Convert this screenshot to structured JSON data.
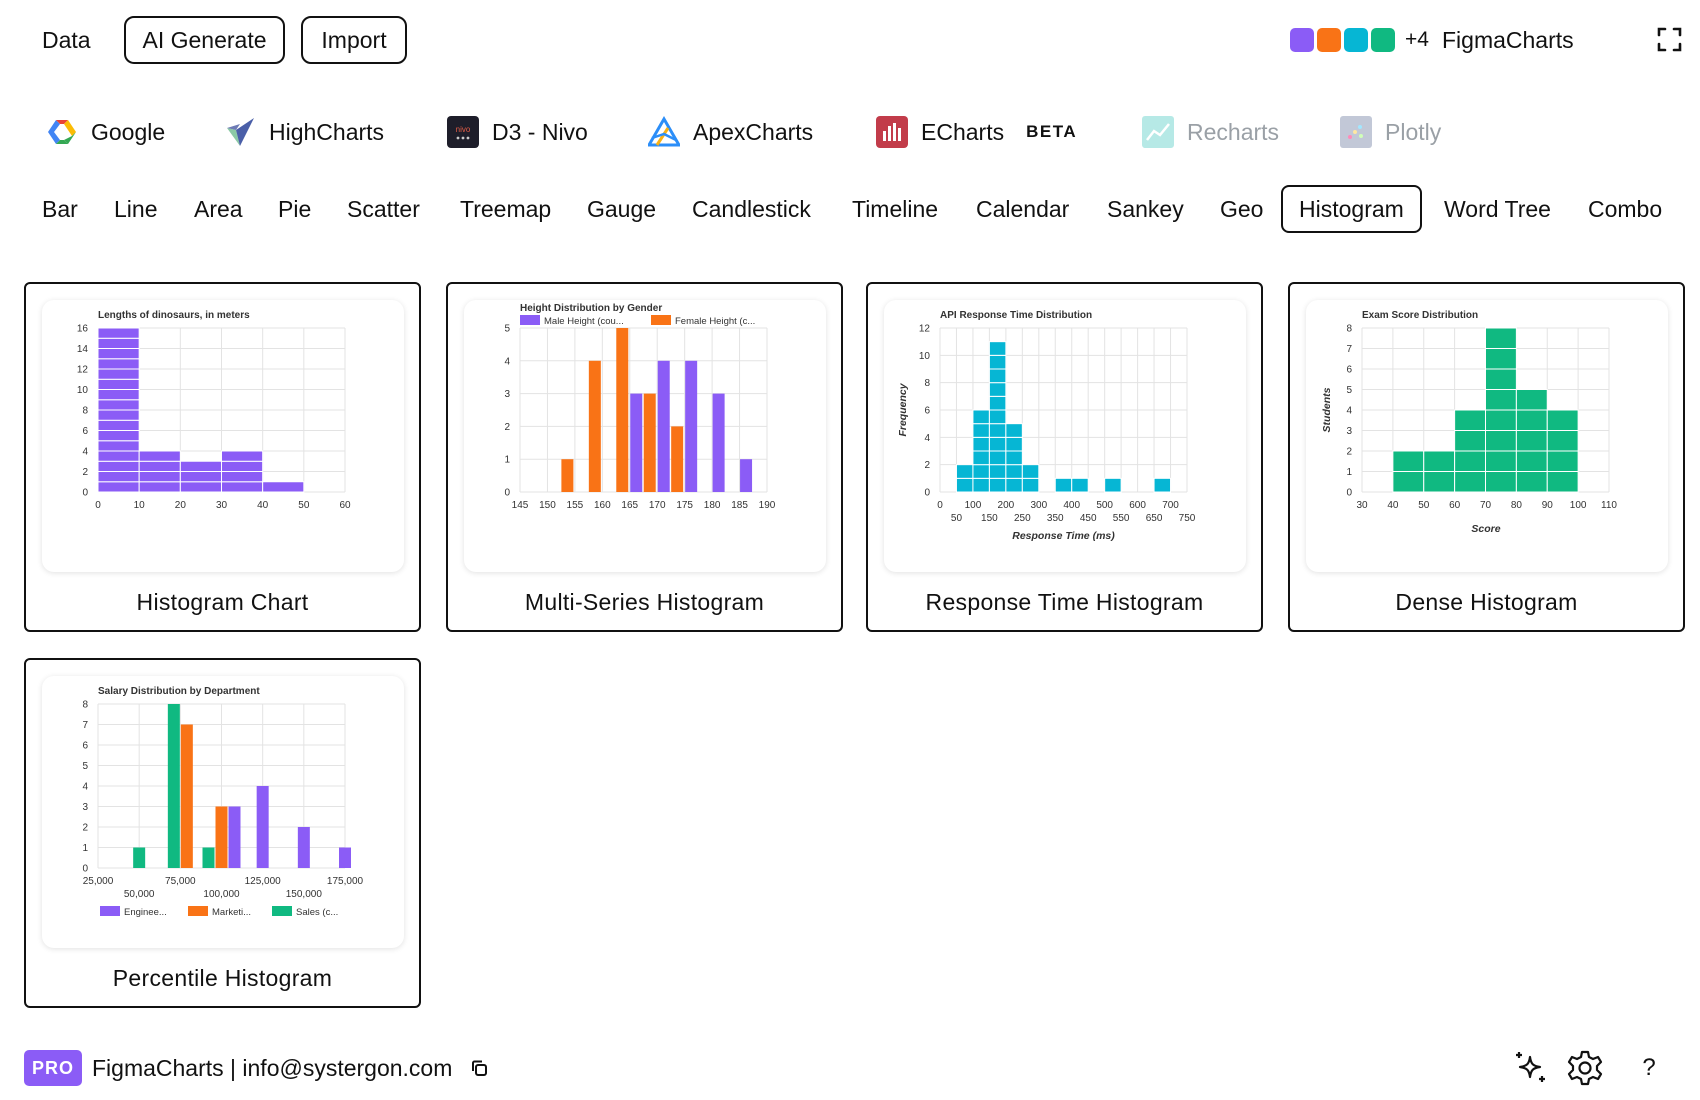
{
  "topbar": {
    "data_label": "Data",
    "ai_generate_label": "AI Generate",
    "import_label": "Import",
    "swatches": [
      "#8b5cf6",
      "#f97316",
      "#06b6d4",
      "#10b981"
    ],
    "extra_count": "+4",
    "app_name": "FigmaCharts",
    "expand_icon": "fullscreen-icon"
  },
  "libraries": [
    {
      "label": "Google",
      "icon": "google-charts-logo"
    },
    {
      "label": "HighCharts",
      "icon": "highcharts-logo"
    },
    {
      "label": "D3 - Nivo",
      "icon": "nivo-logo"
    },
    {
      "label": "ApexCharts",
      "icon": "apexcharts-logo"
    },
    {
      "label": "ECharts",
      "icon": "echarts-logo",
      "badge": "BETA"
    },
    {
      "label": "Recharts",
      "icon": "recharts-logo",
      "disabled": true
    },
    {
      "label": "Plotly",
      "icon": "plotly-logo",
      "disabled": true
    }
  ],
  "chart_types": [
    "Bar",
    "Line",
    "Area",
    "Pie",
    "Scatter",
    "Treemap",
    "Gauge",
    "Candlestick",
    "Timeline",
    "Calendar",
    "Sankey",
    "Geo",
    "Histogram",
    "Word Tree",
    "Combo"
  ],
  "active_chart_type": "Histogram",
  "cards": [
    {
      "label": "Histogram Chart"
    },
    {
      "label": "Multi-Series Histogram"
    },
    {
      "label": "Response Time Histogram"
    },
    {
      "label": "Dense Histogram"
    },
    {
      "label": "Percentile Histogram"
    }
  ],
  "chart_data": [
    {
      "type": "bar",
      "title": "Lengths of dinosaurs, in meters",
      "xlim": [
        0,
        60
      ],
      "ylim": [
        0,
        16
      ],
      "xticks": [
        "0",
        "10",
        "20",
        "30",
        "40",
        "50",
        "60"
      ],
      "yticks": [
        "0",
        "2",
        "4",
        "6",
        "8",
        "10",
        "12",
        "14",
        "16"
      ],
      "bins": [
        [
          0,
          10
        ],
        [
          10,
          20
        ],
        [
          20,
          30
        ],
        [
          30,
          40
        ],
        [
          40,
          50
        ]
      ],
      "values": [
        16,
        4,
        3,
        4,
        1
      ],
      "color": "#8b5cf6"
    },
    {
      "type": "bar",
      "title": "Height Distribution by Gender",
      "categories": [
        "145",
        "150",
        "155",
        "160",
        "165",
        "170",
        "175",
        "180",
        "185",
        "190"
      ],
      "ylim": [
        0,
        5
      ],
      "yticks": [
        "0",
        "1",
        "2",
        "3",
        "4",
        "5"
      ],
      "series": [
        {
          "name": "Male Height (cou...",
          "color": "#8b5cf6",
          "values": [
            0,
            0,
            0,
            0,
            3,
            4,
            4,
            3,
            1,
            0
          ]
        },
        {
          "name": "Female Height (c...",
          "color": "#f97316",
          "values": [
            0,
            0,
            1,
            4,
            5,
            3,
            2,
            0,
            0,
            0
          ]
        }
      ]
    },
    {
      "type": "bar",
      "title": "API Response Time Distribution",
      "xlabel": "Response Time (ms)",
      "ylabel": "Frequency",
      "xlim": [
        0,
        750
      ],
      "ylim": [
        0,
        12
      ],
      "xticks_row1": [
        "0",
        "100",
        "200",
        "300",
        "400",
        "500",
        "600",
        "700"
      ],
      "xticks_row2": [
        "50",
        "150",
        "250",
        "350",
        "450",
        "550",
        "650",
        "750"
      ],
      "yticks": [
        "0",
        "2",
        "4",
        "6",
        "8",
        "10",
        "12"
      ],
      "bins": [
        [
          50,
          100
        ],
        [
          100,
          150
        ],
        [
          150,
          200
        ],
        [
          200,
          250
        ],
        [
          250,
          300
        ],
        [
          350,
          400
        ],
        [
          400,
          450
        ],
        [
          500,
          550
        ],
        [
          650,
          700
        ]
      ],
      "values": [
        2,
        6,
        11,
        5,
        2,
        1,
        1,
        1,
        1
      ],
      "color": "#06b6d4"
    },
    {
      "type": "bar",
      "title": "Exam Score Distribution",
      "xlabel": "Score",
      "ylabel": "Students",
      "xlim": [
        30,
        110
      ],
      "ylim": [
        0,
        8
      ],
      "xticks": [
        "30",
        "40",
        "50",
        "60",
        "70",
        "80",
        "90",
        "100",
        "110"
      ],
      "yticks": [
        "0",
        "1",
        "2",
        "3",
        "4",
        "5",
        "6",
        "7",
        "8"
      ],
      "bins": [
        [
          40,
          50
        ],
        [
          50,
          60
        ],
        [
          60,
          70
        ],
        [
          70,
          80
        ],
        [
          80,
          90
        ],
        [
          90,
          100
        ]
      ],
      "values": [
        2,
        2,
        4,
        8,
        5,
        4
      ],
      "color": "#10b981"
    },
    {
      "type": "bar",
      "title": "Salary Distribution by Department",
      "categories": [
        "25,000",
        "50,000",
        "75,000",
        "100,000",
        "125,000",
        "150,000",
        "175,000"
      ],
      "ylim": [
        0,
        8
      ],
      "yticks": [
        "0",
        "1",
        "2",
        "3",
        "4",
        "5",
        "6",
        "7",
        "8"
      ],
      "series": [
        {
          "name": "Enginee...",
          "color": "#8b5cf6",
          "values": [
            0,
            0,
            0,
            3,
            4,
            2,
            1
          ]
        },
        {
          "name": "Marketi...",
          "color": "#f97316",
          "values": [
            0,
            0,
            7,
            3,
            0,
            0,
            0
          ]
        },
        {
          "name": "Sales (c...",
          "color": "#10b981",
          "values": [
            0,
            1,
            8,
            1,
            0,
            0,
            0
          ]
        }
      ]
    }
  ],
  "footer": {
    "badge": "PRO",
    "text": "FigmaCharts | info@systergon.com",
    "copy_icon": "copy-icon",
    "icons": [
      "sparkles-icon",
      "settings-icon"
    ],
    "help": "?"
  }
}
